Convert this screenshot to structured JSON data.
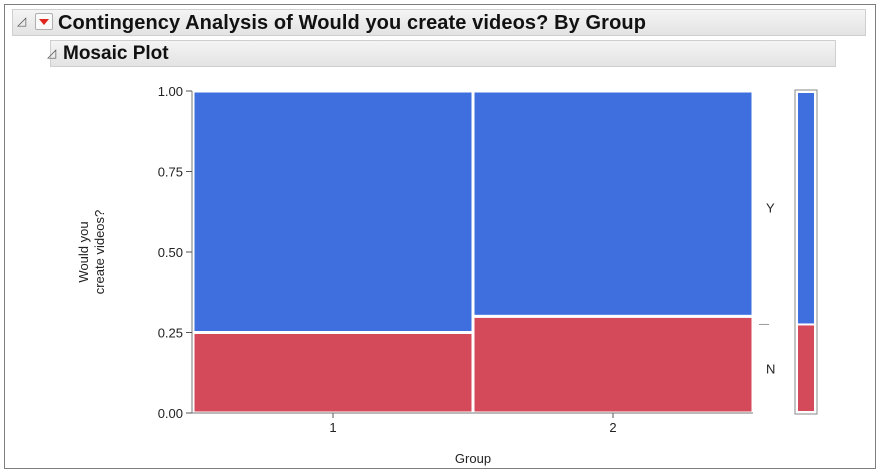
{
  "report": {
    "title": "Contingency Analysis of Would you create videos? By Group",
    "section_title": "Mosaic Plot"
  },
  "chart_data": {
    "type": "mosaic",
    "title": "Mosaic Plot",
    "xlabel": "Group",
    "ylabel_lines": [
      "Would you",
      "create videos?"
    ],
    "categories": [
      "1",
      "2"
    ],
    "column_widths": [
      0.5,
      0.5
    ],
    "levels": [
      "N",
      "Y"
    ],
    "series": [
      {
        "name": "N",
        "values": [
          0.25,
          0.3
        ],
        "color": "#d54a5a"
      },
      {
        "name": "Y",
        "values": [
          0.75,
          0.7
        ],
        "color": "#3f6fdf"
      }
    ],
    "marginal": {
      "N": 0.275,
      "Y": 0.725
    },
    "ylim": [
      0,
      1
    ],
    "yticks": [
      "0.00",
      "0.25",
      "0.50",
      "0.75",
      "1.00"
    ]
  }
}
